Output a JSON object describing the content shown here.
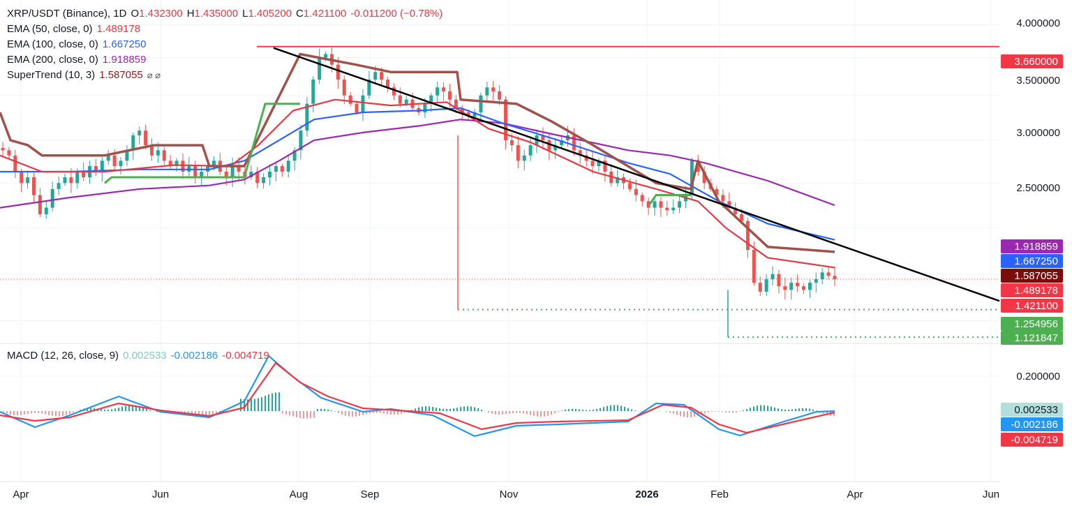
{
  "header": {
    "symbol": "XRP/USDT (Binance), 1D",
    "open_label": "O",
    "open": "1.432300",
    "high_label": "H",
    "high": "1.435000",
    "low_label": "L",
    "low": "1.405200",
    "close_label": "C",
    "close": "1.421100",
    "change": "-0.011200 (−0.78%)"
  },
  "indicators": [
    {
      "label": "EMA (50, close, 0)",
      "value": "1.489178",
      "color": "#e53944"
    },
    {
      "label": "EMA (100, close, 0)",
      "value": "1.667250",
      "color": "#2962ff"
    },
    {
      "label": "EMA (200, close, 0)",
      "value": "1.918859",
      "color": "#9c27b0"
    },
    {
      "label": "SuperTrend (10, 3)",
      "value": "1.587055",
      "color": "#8b1d1d",
      "icons": "⌀ ⌀"
    }
  ],
  "macd_legend": {
    "label": "MACD (12, 26, close, 9)",
    "hist": "0.002533",
    "macd": "-0.002186",
    "signal": "-0.004719"
  },
  "chart_data": {
    "type": "candlestick",
    "x_axis_labels": [
      "Apr",
      "Jun",
      "Aug",
      "Sep",
      "Nov",
      "2026",
      "Feb",
      "Apr",
      "Jun"
    ],
    "y_axis_labels": [
      "4.000000",
      "3.500000",
      "3.000000",
      "2.500000"
    ],
    "scale": "log",
    "ylim": [
      1.1,
      4.3
    ],
    "macd_axis_labels": [
      "0.200000"
    ],
    "price_tags": [
      {
        "value": "3.660000",
        "color": "#f23645",
        "text_color": "#ffffff"
      },
      {
        "value": "1.918859",
        "color": "#9c27b0",
        "text_color": "#ffffff"
      },
      {
        "value": "1.667250",
        "color": "#2962ff",
        "text_color": "#ffffff"
      },
      {
        "value": "1.587055",
        "color": "#7a0c0c",
        "text_color": "#ffffff"
      },
      {
        "value": "1.489178",
        "color": "#f23645",
        "text_color": "#ffffff"
      },
      {
        "value": "1.421100",
        "color": "#f23645",
        "text_color": "#ffffff"
      },
      {
        "value": "1.254956",
        "color": "#4caf50",
        "text_color": "#ffffff"
      },
      {
        "value": "1.121847",
        "color": "#4caf50",
        "text_color": "#ffffff"
      }
    ],
    "macd_tags": [
      {
        "value": "0.002533",
        "color": "#b2dfdb",
        "text_color": "#131722"
      },
      {
        "value": "-0.002186",
        "color": "#2196f3",
        "text_color": "#ffffff"
      },
      {
        "value": "-0.004719",
        "color": "#f23645",
        "text_color": "#ffffff"
      }
    ],
    "resistance_level": 3.66,
    "support_levels": [
      1.254956,
      1.121847
    ],
    "trendline": {
      "from_price": 3.64,
      "to_price": 1.3
    },
    "candles_close_path": [
      2.4,
      2.35,
      2.2,
      2.1,
      2.15,
      2.0,
      1.85,
      1.9,
      2.05,
      2.1,
      2.15,
      2.1,
      2.2,
      2.15,
      2.25,
      2.2,
      2.3,
      2.35,
      2.25,
      2.3,
      2.4,
      2.55,
      2.6,
      2.45,
      2.35,
      2.4,
      2.3,
      2.25,
      2.3,
      2.2,
      2.25,
      2.15,
      2.2,
      2.25,
      2.3,
      2.2,
      2.15,
      2.25,
      2.2,
      2.15,
      2.2,
      2.1,
      2.15,
      2.2,
      2.25,
      2.2,
      2.3,
      2.4,
      2.6,
      2.9,
      3.2,
      3.5,
      3.55,
      3.4,
      3.2,
      3.0,
      2.9,
      2.8,
      3.0,
      3.2,
      3.3,
      3.2,
      3.1,
      3.0,
      2.9,
      2.95,
      2.85,
      2.8,
      2.9,
      3.0,
      3.1,
      3.05,
      2.95,
      2.85,
      2.8,
      2.75,
      2.8,
      3.0,
      3.1,
      3.05,
      2.95,
      2.5,
      2.45,
      2.3,
      2.35,
      2.45,
      2.55,
      2.5,
      2.4,
      2.45,
      2.5,
      2.55,
      2.4,
      2.35,
      2.3,
      2.25,
      2.3,
      2.2,
      2.1,
      2.15,
      2.1,
      2.05,
      2.0,
      1.95,
      1.9,
      1.95,
      1.9,
      1.88,
      1.9,
      1.95,
      2.0,
      2.3,
      2.2,
      2.1,
      2.05,
      2.0,
      1.95,
      1.9,
      1.85,
      1.8,
      1.6,
      1.4,
      1.35,
      1.42,
      1.45,
      1.38,
      1.36,
      1.4,
      1.38,
      1.36,
      1.4,
      1.42,
      1.46,
      1.44,
      1.42
    ]
  },
  "colors": {
    "up": "#26a69a",
    "down": "#ef5350",
    "ema50": "#e53944",
    "ema100": "#2962ff",
    "ema200": "#9c27b0",
    "supertrend_down": "#a0524a",
    "supertrend_up": "#4caf50",
    "trendline": "#000000",
    "grid": "#f0f3fa"
  }
}
